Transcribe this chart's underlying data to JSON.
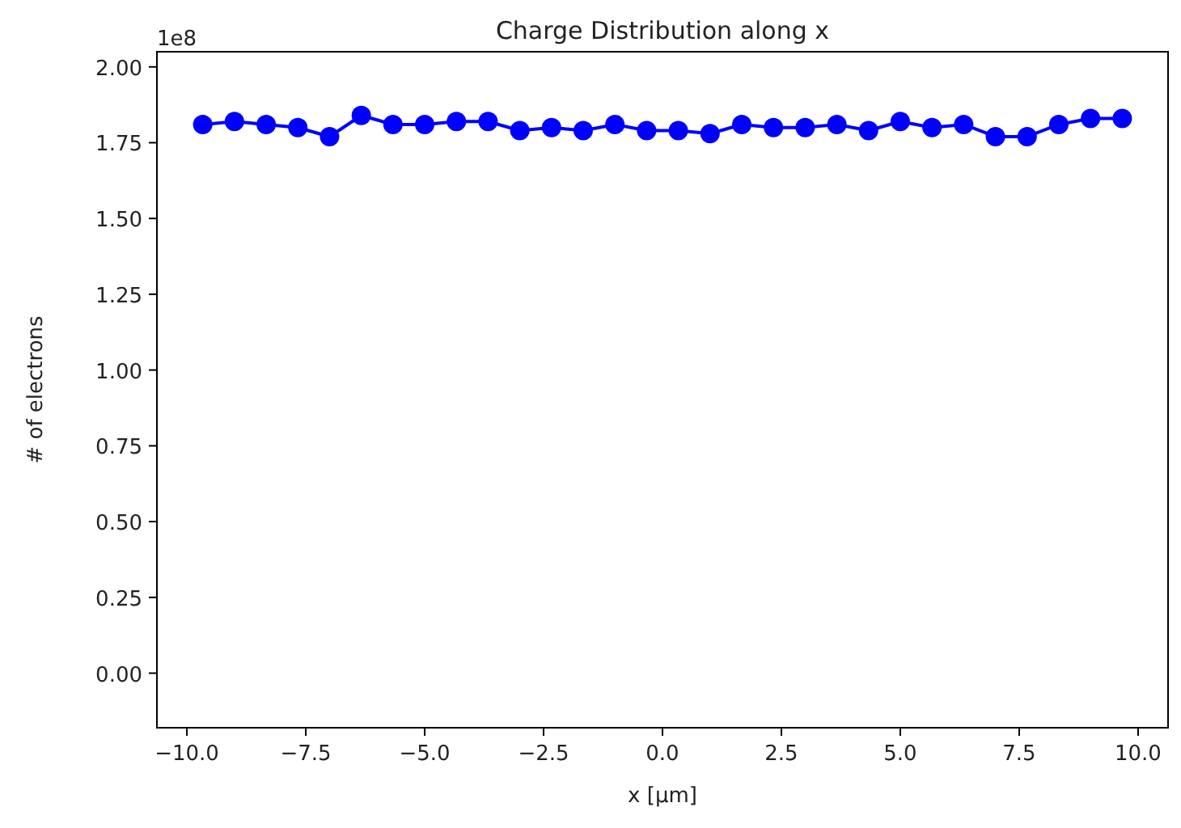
{
  "chart_data": {
    "type": "line",
    "title": "Charge Distribution along x",
    "xlabel": "x [µm]",
    "ylabel": "# of electrons",
    "annotations": [
      "1e8"
    ],
    "x": [
      -9.667,
      -9,
      -8.333,
      -7.667,
      -7,
      -6.333,
      -5.667,
      -5,
      -4.333,
      -3.667,
      -3,
      -2.333,
      -1.667,
      -1,
      -0.333,
      0.333,
      1,
      1.667,
      2.333,
      3,
      3.667,
      4.333,
      5,
      5.667,
      6.333,
      7,
      7.667,
      8.333,
      9,
      9.667
    ],
    "series": [
      {
        "color": "#0000ff",
        "values": [
          1.81,
          1.82,
          1.81,
          1.8,
          1.77,
          1.84,
          1.81,
          1.81,
          1.82,
          1.82,
          1.79,
          1.8,
          1.79,
          1.81,
          1.79,
          1.79,
          1.78,
          1.81,
          1.8,
          1.8,
          1.81,
          1.79,
          1.82,
          1.8,
          1.81,
          1.77,
          1.77,
          1.81,
          1.83,
          1.83
        ]
      }
    ],
    "marker": "circle",
    "line_style": "solid",
    "grid": false,
    "xlim": [
      -10.63,
      10.63
    ],
    "xticks": [
      {
        "value": -10,
        "label": "−10.0"
      },
      {
        "value": -7.5,
        "label": "−7.5"
      },
      {
        "value": -5,
        "label": "−5.0"
      },
      {
        "value": -2.5,
        "label": "−2.5"
      },
      {
        "value": 0,
        "label": "0.0"
      },
      {
        "value": 2.5,
        "label": "2.5"
      },
      {
        "value": 5,
        "label": "5.0"
      },
      {
        "value": 7.5,
        "label": "7.5"
      },
      {
        "value": 10,
        "label": "10.0"
      }
    ],
    "ylim": [
      -0.18,
      2.05
    ],
    "yticks": [
      {
        "value": 0,
        "label": "0.00"
      },
      0.25,
      {
        "value": 0.5,
        "label": "0.50"
      },
      0.75,
      {
        "value": 1,
        "label": "1.00"
      },
      1.25,
      {
        "value": 1.5,
        "label": "1.50"
      },
      1.75,
      {
        "value": 2,
        "label": "2.00"
      }
    ]
  }
}
